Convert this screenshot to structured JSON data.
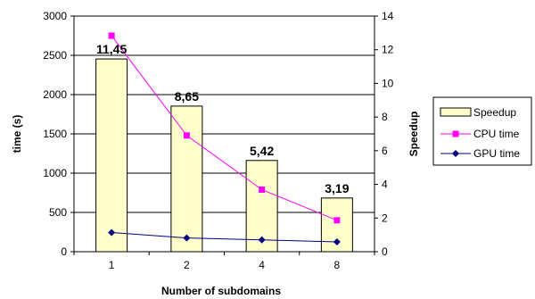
{
  "chart_data": {
    "type": "bar",
    "categories": [
      "1",
      "2",
      "4",
      "8"
    ],
    "xlabel": "Number of subdomains",
    "ylabel_left": "time (s)",
    "ylabel_right": "Speedup",
    "ylim_left": [
      0,
      3000
    ],
    "yticks_left": [
      "0",
      "500",
      "1000",
      "1500",
      "2000",
      "2500",
      "3000"
    ],
    "ylim_right": [
      0,
      14
    ],
    "yticks_right": [
      "0",
      "2",
      "4",
      "6",
      "8",
      "10",
      "12",
      "14"
    ],
    "legend_position": "right",
    "grid": true,
    "series": [
      {
        "name": "Speedup",
        "kind": "bar",
        "axis": "right",
        "values": [
          11.45,
          8.65,
          5.42,
          3.19
        ],
        "value_labels": [
          "11,45",
          "8,65",
          "5,42",
          "3,19"
        ],
        "color": "#ffffcc"
      },
      {
        "name": "CPU time",
        "kind": "line",
        "axis": "left",
        "marker": "square",
        "values": [
          2750,
          1480,
          790,
          400
        ],
        "color": "#ff00ff"
      },
      {
        "name": "GPU time",
        "kind": "line",
        "axis": "left",
        "marker": "diamond",
        "values": [
          245,
          175,
          150,
          125
        ],
        "color": "#000080"
      }
    ]
  }
}
